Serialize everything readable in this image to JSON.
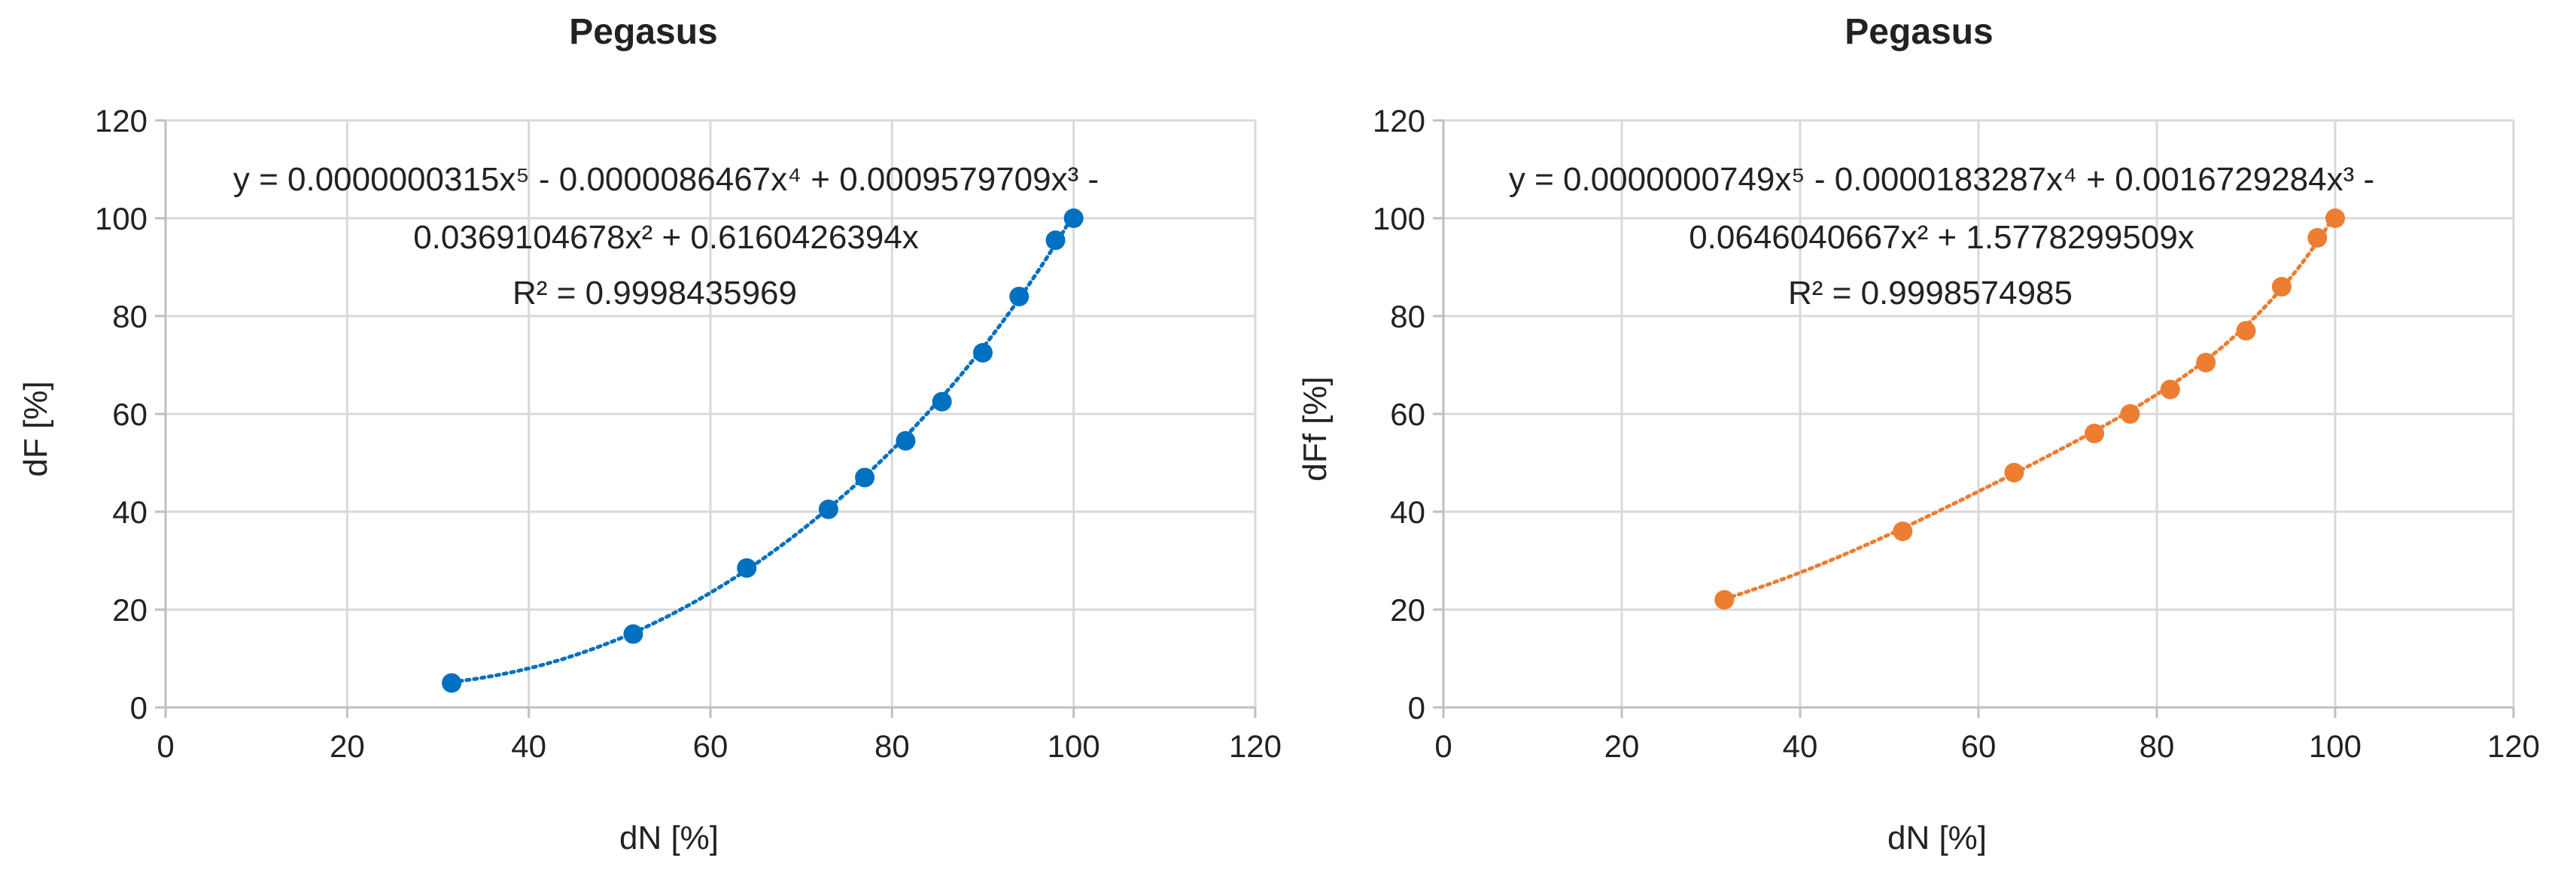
{
  "chart_data": [
    {
      "type": "scatter",
      "title": "Pegasus",
      "xlabel": "dN [%]",
      "ylabel": "dF [%]",
      "xlim": [
        0,
        120
      ],
      "ylim": [
        0,
        120
      ],
      "xticks": [
        0,
        20,
        40,
        60,
        80,
        100,
        120
      ],
      "yticks": [
        0,
        20,
        40,
        60,
        80,
        100,
        120
      ],
      "grid": true,
      "color": "#0070C0",
      "x": [
        31.5,
        51.5,
        64,
        73,
        77,
        81.5,
        85.5,
        90,
        94,
        98,
        100
      ],
      "y": [
        5,
        15,
        28.5,
        40.5,
        47,
        54.5,
        62.5,
        72.5,
        84,
        95.5,
        100
      ],
      "trendline": {
        "type": "polynomial",
        "order": 5,
        "coefficients": [
          3.15e-08,
          -8.6467e-06,
          0.0009579709,
          -0.0369104678,
          0.6160426394,
          0
        ],
        "equation_line1": "y = 0.0000000315x⁵  - 0.0000086467x⁴  + 0.0009579709x³  -",
        "equation_line2": "0.0369104678x²  + 0.6160426394x",
        "r2_label": "R² = 0.9998435969"
      }
    },
    {
      "type": "scatter",
      "title": "Pegasus",
      "xlabel": "dN [%]",
      "ylabel": "dFf [%]",
      "xlim": [
        0,
        120
      ],
      "ylim": [
        0,
        120
      ],
      "xticks": [
        0,
        20,
        40,
        60,
        80,
        100,
        120
      ],
      "yticks": [
        0,
        20,
        40,
        60,
        80,
        100,
        120
      ],
      "grid": true,
      "color": "#ED7D31",
      "x": [
        31.5,
        51.5,
        64,
        73,
        77,
        81.5,
        85.5,
        90,
        94,
        98,
        100
      ],
      "y": [
        22,
        36,
        48,
        56,
        60,
        65,
        70.5,
        77,
        86,
        96,
        100
      ],
      "trendline": {
        "type": "polynomial",
        "order": 5,
        "coefficients": [
          7.49e-08,
          -1.83287e-05,
          0.0016729284,
          -0.0646040667,
          1.5778299509,
          0
        ],
        "equation_line1": "y = 0.0000000749x⁵  - 0.0000183287x⁴  + 0.0016729284x³  -",
        "equation_line2": "0.0646040667x²  + 1.5778299509x",
        "r2_label": "R² = 0.9998574985"
      }
    }
  ]
}
